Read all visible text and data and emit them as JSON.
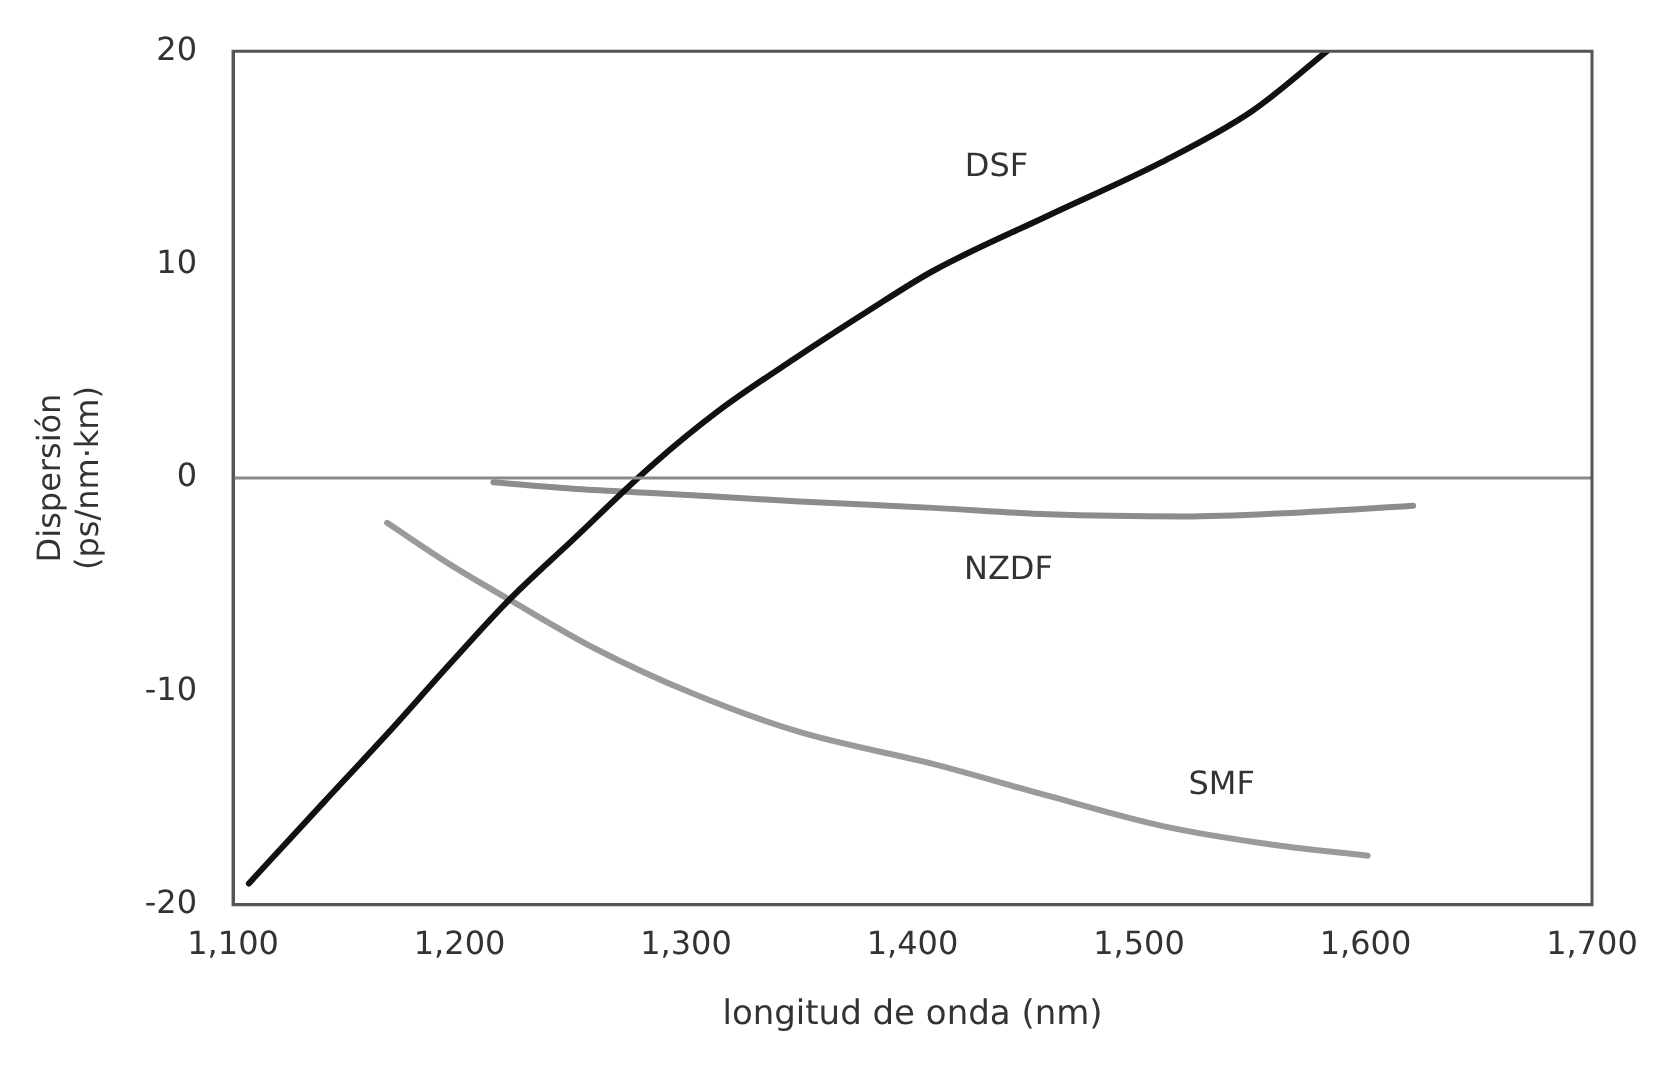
{
  "chart_data": {
    "type": "line",
    "xlabel": "longitud de onda (nm)",
    "ylabel": "Dispersión (ps/nm·km)",
    "xlim": [
      1100,
      1700
    ],
    "xticks": [
      {
        "value": 1100,
        "label": "1,100"
      },
      {
        "value": 1200,
        "label": "1,200"
      },
      {
        "value": 1300,
        "label": "1,300"
      },
      {
        "value": 1400,
        "label": "1,400"
      },
      {
        "value": 1500,
        "label": "1,500"
      },
      {
        "value": 1600,
        "label": "1,600"
      },
      {
        "value": 1700,
        "label": "1,700"
      }
    ],
    "ylim": [
      -20,
      20
    ],
    "yticks": [
      -20,
      -10,
      0,
      10,
      20
    ],
    "grid": false,
    "legend": false,
    "marker": "none",
    "line_style": "solid",
    "ref_lines": [
      {
        "axis": "y",
        "value": 0,
        "color": "#8a8a8a"
      }
    ],
    "series": [
      {
        "name": "DSF",
        "color": "#111111",
        "x": [
          1107,
          1140,
          1168,
          1195,
          1222,
          1250,
          1285,
          1315,
          1348,
          1380,
          1409,
          1460,
          1510,
          1550,
          1583
        ],
        "values": [
          -19,
          -15.2,
          -12,
          -8.8,
          -5.7,
          -2.9,
          0.6,
          3.2,
          5.6,
          7.8,
          9.7,
          12.3,
          14.8,
          17.2,
          20
        ]
      },
      {
        "name": "NZDF",
        "color": "#8c8c8c",
        "x": [
          1215,
          1250,
          1285,
          1350,
          1409,
          1460,
          1520,
          1573,
          1621
        ],
        "values": [
          -0.2,
          -0.5,
          -0.7,
          -1.1,
          -1.4,
          -1.7,
          -1.8,
          -1.6,
          -1.3
        ]
      },
      {
        "name": "SMF",
        "color": "#9a9a9a",
        "x": [
          1168,
          1195,
          1222,
          1260,
          1303,
          1350,
          1409,
          1460,
          1510,
          1560,
          1601
        ],
        "values": [
          -2.1,
          -4,
          -5.7,
          -8,
          -10.1,
          -11.9,
          -13.4,
          -14.9,
          -16.3,
          -17.2,
          -17.7
        ]
      }
    ]
  }
}
